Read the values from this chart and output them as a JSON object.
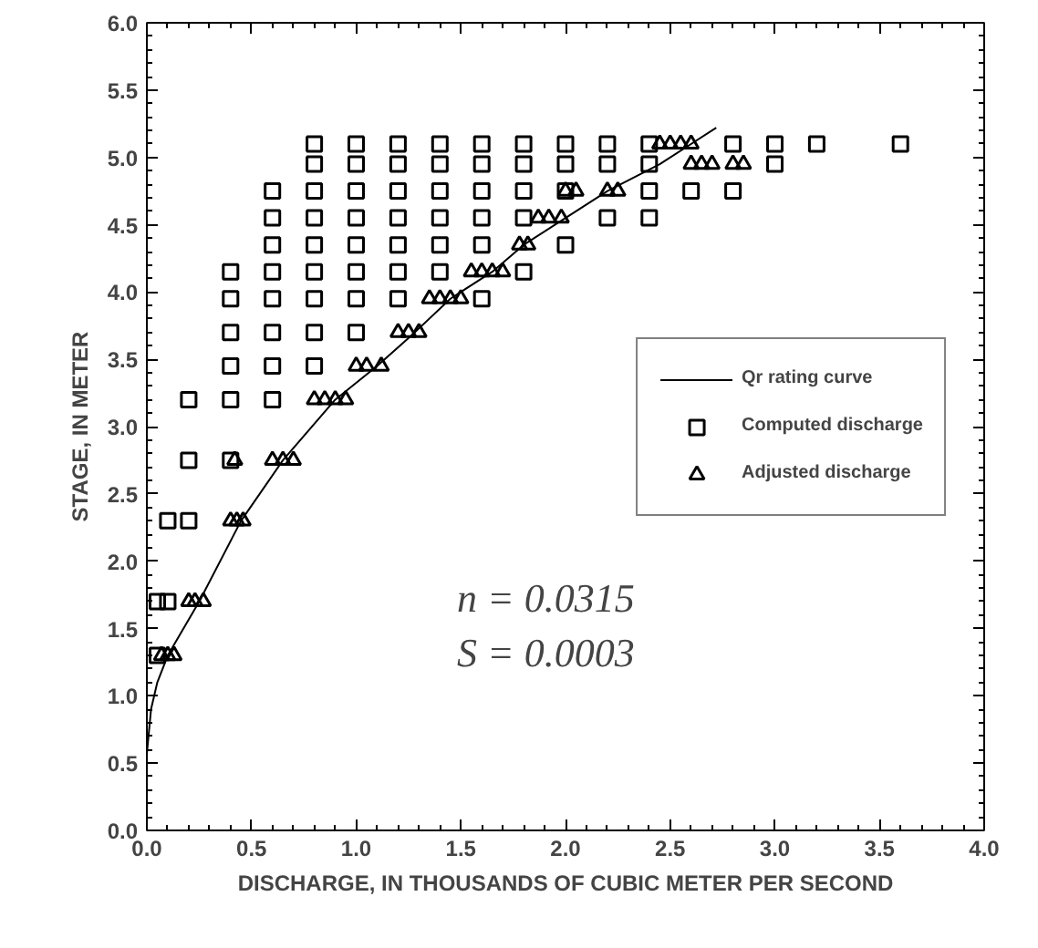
{
  "chart_data": {
    "type": "scatter",
    "xlabel": "DISCHARGE, IN THOUSANDS OF CUBIC METER PER SECOND",
    "ylabel": "STAGE, IN METER",
    "xlim": [
      0,
      4
    ],
    "ylim": [
      0,
      6
    ],
    "xticks": [
      {
        "value": 0,
        "label": "0.0"
      },
      0.5,
      {
        "value": 1,
        "label": "1.0"
      },
      1.5,
      {
        "value": 2,
        "label": "2.0"
      },
      2.5,
      {
        "value": 3,
        "label": "3.0"
      },
      3.5,
      {
        "value": 4,
        "label": "4.0"
      }
    ],
    "yticks": [
      {
        "value": 0,
        "label": "0.0"
      },
      0.5,
      {
        "value": 1,
        "label": "1.0"
      },
      1.5,
      {
        "value": 2,
        "label": "2.0"
      },
      2.5,
      {
        "value": 3,
        "label": "3.0"
      },
      3.5,
      {
        "value": 4,
        "label": "4.0"
      },
      4.5,
      {
        "value": 5,
        "label": "5.0"
      },
      5.5,
      {
        "value": 6,
        "label": "6.0"
      }
    ],
    "grid": false,
    "legend": "right",
    "annotations": [
      "n = 0.0315",
      "S = 0.0003"
    ],
    "series": [
      {
        "name": "Qr rating curve",
        "type": "line",
        "color": "#000000",
        "marker": "none",
        "line_style": "solid",
        "x": [
          0,
          0.02,
          0.05,
          0.1,
          0.25,
          0.45,
          0.65,
          0.9,
          1.1,
          1.28,
          1.45,
          1.65,
          1.8,
          2.0,
          2.2,
          2.45,
          2.72
        ],
        "values": [
          0.57,
          0.9,
          1.1,
          1.3,
          1.7,
          2.3,
          2.75,
          3.2,
          3.45,
          3.7,
          3.95,
          4.15,
          4.35,
          4.55,
          4.75,
          4.95,
          5.22
        ]
      },
      {
        "name": "Computed discharge",
        "color": "#000000",
        "marker": "square",
        "x": [
          0.8,
          1.0,
          1.2,
          1.4,
          1.6,
          1.8,
          2.0,
          2.2,
          2.4,
          2.8,
          3.0,
          3.2,
          3.6,
          0.8,
          1.0,
          1.2,
          1.4,
          1.6,
          1.8,
          2.0,
          2.2,
          2.4,
          3.0,
          0.6,
          0.8,
          1.0,
          1.2,
          1.4,
          1.6,
          1.8,
          2.0,
          2.4,
          2.6,
          2.8,
          0.6,
          0.8,
          1.0,
          1.2,
          1.4,
          1.6,
          1.8,
          2.2,
          2.4,
          0.6,
          0.8,
          1.0,
          1.2,
          1.4,
          1.6,
          2.0,
          0.4,
          0.6,
          0.8,
          1.0,
          1.2,
          1.4,
          1.8,
          0.4,
          0.6,
          0.8,
          1.0,
          1.2,
          1.6,
          0.4,
          0.6,
          0.8,
          1.0,
          0.4,
          0.6,
          0.8,
          0.2,
          0.4,
          0.6,
          0.2,
          0.4,
          0.1,
          0.2,
          0.05,
          0.1,
          0.05
        ],
        "values": [
          5.1,
          5.1,
          5.1,
          5.1,
          5.1,
          5.1,
          5.1,
          5.1,
          5.1,
          5.1,
          5.1,
          5.1,
          5.1,
          4.95,
          4.95,
          4.95,
          4.95,
          4.95,
          4.95,
          4.95,
          4.95,
          4.95,
          4.95,
          4.75,
          4.75,
          4.75,
          4.75,
          4.75,
          4.75,
          4.75,
          4.75,
          4.75,
          4.75,
          4.75,
          4.55,
          4.55,
          4.55,
          4.55,
          4.55,
          4.55,
          4.55,
          4.55,
          4.55,
          4.35,
          4.35,
          4.35,
          4.35,
          4.35,
          4.35,
          4.35,
          4.15,
          4.15,
          4.15,
          4.15,
          4.15,
          4.15,
          4.15,
          3.95,
          3.95,
          3.95,
          3.95,
          3.95,
          3.95,
          3.7,
          3.7,
          3.7,
          3.7,
          3.45,
          3.45,
          3.45,
          3.2,
          3.2,
          3.2,
          2.75,
          2.75,
          2.3,
          2.3,
          1.7,
          1.7,
          1.3
        ]
      },
      {
        "name": "Adjusted discharge",
        "color": "#000000",
        "marker": "triangle",
        "x": [
          0.07,
          0.1,
          0.13,
          0.2,
          0.23,
          0.27,
          0.4,
          0.43,
          0.46,
          0.42,
          0.6,
          0.65,
          0.7,
          0.8,
          0.85,
          0.9,
          0.95,
          1.0,
          1.05,
          1.12,
          1.2,
          1.25,
          1.3,
          1.35,
          1.4,
          1.45,
          1.5,
          1.55,
          1.6,
          1.65,
          1.7,
          1.78,
          1.82,
          1.87,
          1.92,
          1.98,
          2.0,
          2.05,
          2.2,
          2.25,
          2.6,
          2.65,
          2.7,
          2.8,
          2.85,
          2.45,
          2.5,
          2.55,
          2.6
        ],
        "values": [
          1.3,
          1.3,
          1.3,
          1.7,
          1.7,
          1.7,
          2.3,
          2.3,
          2.3,
          2.75,
          2.75,
          2.75,
          2.75,
          3.2,
          3.2,
          3.2,
          3.2,
          3.45,
          3.45,
          3.45,
          3.7,
          3.7,
          3.7,
          3.95,
          3.95,
          3.95,
          3.95,
          4.15,
          4.15,
          4.15,
          4.15,
          4.35,
          4.35,
          4.55,
          4.55,
          4.55,
          4.75,
          4.75,
          4.75,
          4.75,
          4.95,
          4.95,
          4.95,
          4.95,
          4.95,
          5.1,
          5.1,
          5.1,
          5.1
        ]
      }
    ]
  }
}
